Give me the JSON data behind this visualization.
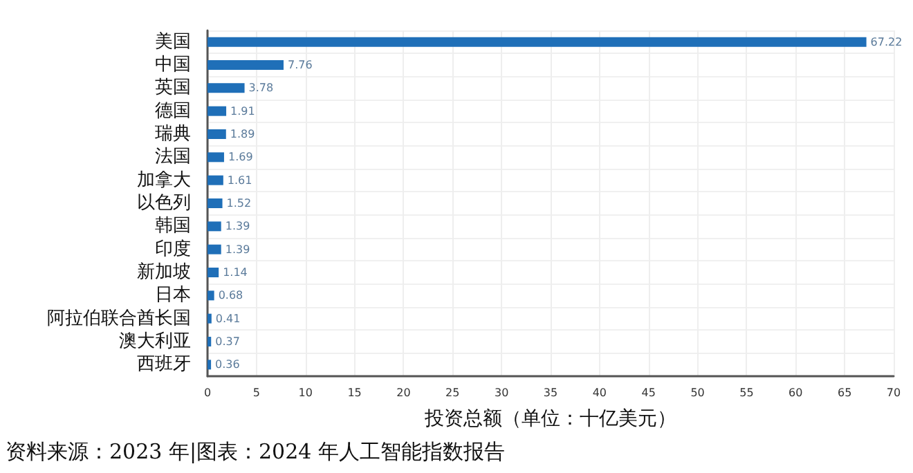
{
  "chart_data": {
    "type": "bar",
    "orientation": "horizontal",
    "xlabel": "投资总额（单位：十亿美元）",
    "categories": [
      "美国",
      "中国",
      "英国",
      "德国",
      "瑞典",
      "法国",
      "加拿大",
      "以色列",
      "韩国",
      "印度",
      "新加坡",
      "日本",
      "阿拉伯联合酋长国",
      "澳大利亚",
      "西班牙"
    ],
    "values": [
      67.22,
      7.76,
      3.78,
      1.91,
      1.89,
      1.69,
      1.61,
      1.52,
      1.39,
      1.39,
      1.14,
      0.68,
      0.41,
      0.37,
      0.36
    ],
    "color": "#1f6fb8",
    "xlim": [
      0,
      70
    ],
    "xticks": [
      0,
      5,
      10,
      15,
      20,
      25,
      30,
      35,
      40,
      45,
      50,
      55,
      60,
      65,
      70
    ],
    "grid": true,
    "data_labels": true,
    "annotations": [
      "资料来源：2023 年|图表：2024 年人工智能指数报告"
    ]
  }
}
